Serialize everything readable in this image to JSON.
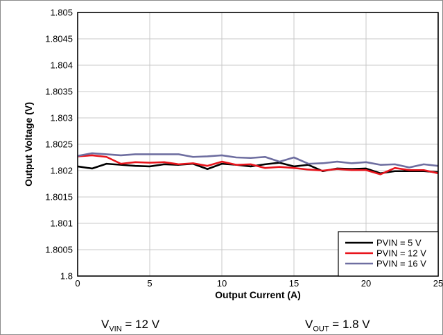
{
  "chart_data": {
    "type": "line",
    "xlabel": "Output Current (A)",
    "ylabel": "Output Voltage (V)",
    "xlim": [
      0,
      25
    ],
    "ylim": [
      1.8,
      1.805
    ],
    "x_ticks": [
      "0",
      "5",
      "10",
      "15",
      "20",
      "25"
    ],
    "y_ticks": [
      "1.8",
      "1.8005",
      "1.801",
      "1.8015",
      "1.802",
      "1.8025",
      "1.803",
      "1.8035",
      "1.804",
      "1.8045",
      "1.805"
    ],
    "grid": true,
    "legend_position": "bottom-right",
    "x": [
      0,
      1,
      2,
      3,
      4,
      5,
      6,
      7,
      8,
      9,
      10,
      11,
      12,
      13,
      14,
      15,
      16,
      17,
      18,
      19,
      20,
      21,
      22,
      23,
      24,
      25
    ],
    "series": [
      {
        "name": "PVIN = 5 V",
        "color": "#000000",
        "values": [
          1.80208,
          1.80204,
          1.80213,
          1.80211,
          1.80209,
          1.80208,
          1.80212,
          1.80211,
          1.80213,
          1.80203,
          1.80213,
          1.80211,
          1.80208,
          1.80212,
          1.80215,
          1.80208,
          1.80211,
          1.80199,
          1.80204,
          1.80203,
          1.80204,
          1.80195,
          1.80199,
          1.80199,
          1.80199,
          1.80197
        ]
      },
      {
        "name": "PVIN = 12 V",
        "color": "#e8141c",
        "values": [
          1.80227,
          1.80229,
          1.80226,
          1.80213,
          1.80216,
          1.80215,
          1.80216,
          1.80212,
          1.80214,
          1.80209,
          1.80217,
          1.80211,
          1.80212,
          1.80205,
          1.80207,
          1.80205,
          1.80202,
          1.802,
          1.80203,
          1.80201,
          1.80201,
          1.80193,
          1.80205,
          1.80201,
          1.80201,
          1.80195
        ]
      },
      {
        "name": "PVIN = 16 V",
        "color": "#6e6ea0",
        "values": [
          1.80228,
          1.80233,
          1.80231,
          1.80229,
          1.80231,
          1.80231,
          1.80231,
          1.80231,
          1.80226,
          1.80227,
          1.80229,
          1.80225,
          1.80224,
          1.80226,
          1.80217,
          1.80225,
          1.80213,
          1.80214,
          1.80217,
          1.80214,
          1.80216,
          1.80211,
          1.80212,
          1.80206,
          1.80212,
          1.80209
        ]
      }
    ]
  },
  "conditions": {
    "vin_symbol": "V",
    "vin_sub": "VIN",
    "vin_value": " = 12 V",
    "vout_symbol": "V",
    "vout_sub": "OUT",
    "vout_value": " = 1.8 V"
  }
}
